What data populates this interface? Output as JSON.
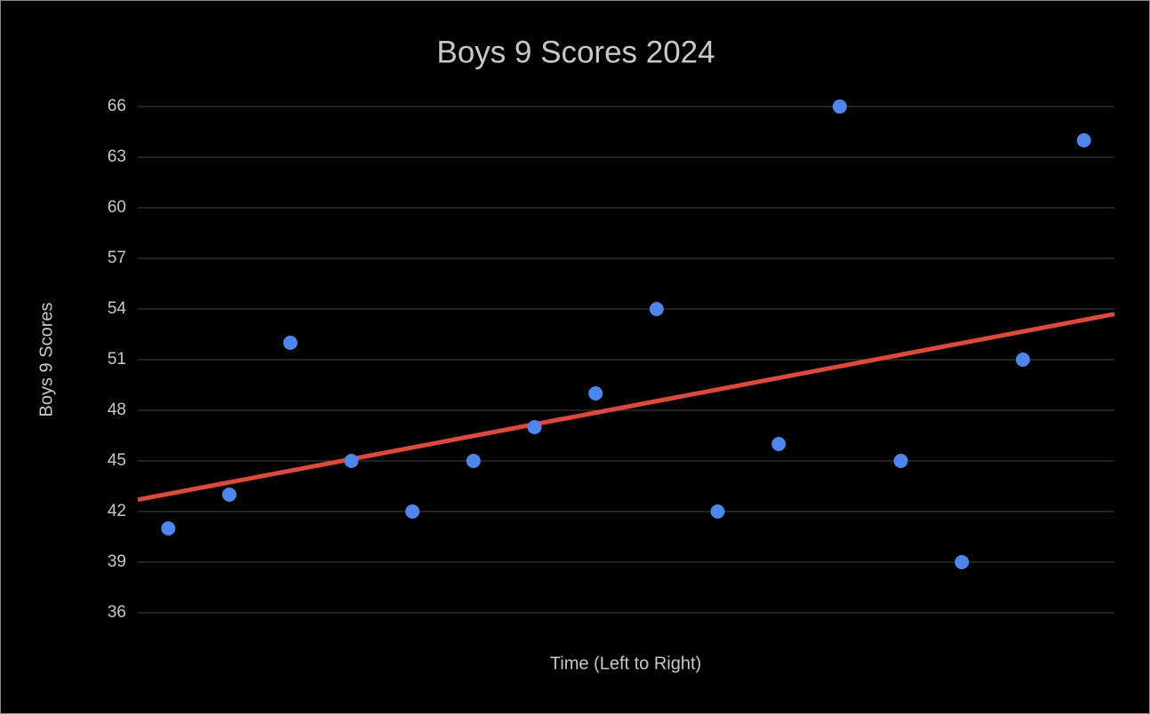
{
  "chart_data": {
    "type": "scatter",
    "title": "Boys 9 Scores 2024",
    "x_label": "Time (Left to Right)",
    "y_label": "Boys 9 Scores",
    "x": [
      1,
      2,
      3,
      4,
      5,
      6,
      7,
      8,
      9,
      10,
      11,
      12,
      13,
      14,
      15,
      16
    ],
    "series": [
      {
        "name": "Boys 9 Scores",
        "color": "#4f86ec",
        "values": [
          41,
          43,
          52,
          45,
          42,
          45,
          47,
          49,
          54,
          42,
          46,
          66,
          45,
          39,
          51,
          64
        ]
      }
    ],
    "trendline": {
      "color": "#dc4a3d",
      "x": [
        0.5,
        16.5
      ],
      "values": [
        42.7,
        53.7
      ]
    },
    "xlim": [
      0.5,
      16.5
    ],
    "ylim": [
      36,
      66
    ],
    "yticks": [
      36,
      39,
      42,
      45,
      48,
      51,
      54,
      57,
      60,
      63,
      66
    ],
    "grid": true
  }
}
